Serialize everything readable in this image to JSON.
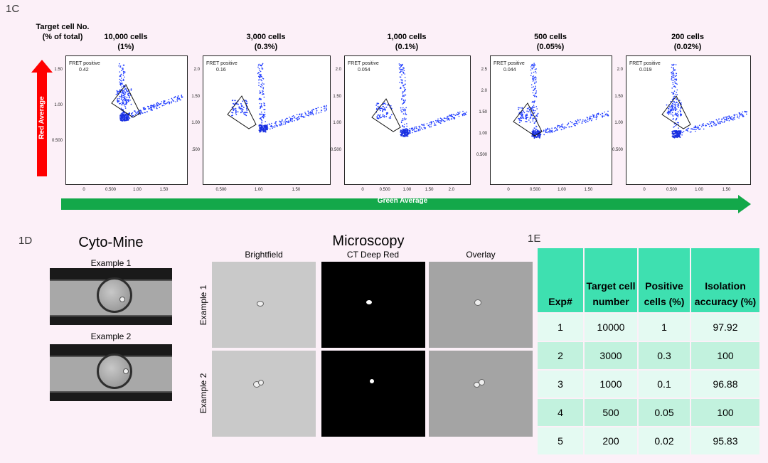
{
  "panel_c": {
    "label": "1C",
    "target_header": [
      "Target cell No.",
      "(% of total)"
    ],
    "plots": [
      {
        "count": "10,000 cells",
        "pct": "(1%)",
        "fret_label": "FRET positive",
        "fret_value": "0.42",
        "yticks": [
          "1.50",
          "1.00",
          "0.500"
        ],
        "xticks": [
          "0",
          "0.500",
          "1.00",
          "1.50"
        ]
      },
      {
        "count": "3,000 cells",
        "pct": "(0.3%)",
        "fret_label": "FRET positive",
        "fret_value": "0.16",
        "yticks": [
          "2.0",
          "1.50",
          "1.00",
          ".500"
        ],
        "xticks": [
          "0.500",
          "1.00",
          "1.50"
        ]
      },
      {
        "count": "1,000 cells",
        "pct": "(0.1%)",
        "fret_label": "FRET positive",
        "fret_value": "0.054",
        "yticks": [
          "2.0",
          "1.50",
          "1.00",
          "0.500"
        ],
        "xticks": [
          "0",
          "0.500",
          "1.00",
          "1.50",
          "2.0"
        ]
      },
      {
        "count": "500 cells",
        "pct": "(0.05%)",
        "fret_label": "FRET positive",
        "fret_value": "0.044",
        "yticks": [
          "2.5",
          "2.0",
          "1.50",
          "1.00",
          "0.500"
        ],
        "xticks": [
          "0",
          "0.500",
          "1.00",
          "1.50"
        ]
      },
      {
        "count": "200 cells",
        "pct": "(0.02%)",
        "fret_label": "FRET positive",
        "fret_value": "0.019",
        "yticks": [
          "2.0",
          "1.50",
          "1.00",
          "0.500"
        ],
        "xticks": [
          "0",
          "0.500",
          "1.00",
          "1.50"
        ]
      }
    ],
    "y_axis_label": "Red  Average",
    "x_axis_label": "Green Average"
  },
  "panel_d": {
    "label": "1D",
    "cytomine_title": "Cyto-Mine",
    "example1": "Example 1",
    "example2": "Example 2",
    "microscopy_title": "Microscopy",
    "columns": [
      "Brightfield",
      "CT Deep Red",
      "Overlay"
    ],
    "row_labels": [
      "Example 1",
      "Example 2"
    ]
  },
  "panel_e": {
    "label": "1E",
    "headers": [
      "Exp#",
      "Target cell number",
      "Positive cells (%)",
      "Isolation accuracy (%)"
    ],
    "rows": [
      [
        "1",
        "10000",
        "1",
        "97.92"
      ],
      [
        "2",
        "3000",
        "0.3",
        "100"
      ],
      [
        "3",
        "1000",
        "0.1",
        "96.88"
      ],
      [
        "4",
        "500",
        "0.05",
        "100"
      ],
      [
        "5",
        "200",
        "0.02",
        "95.83"
      ]
    ]
  }
}
